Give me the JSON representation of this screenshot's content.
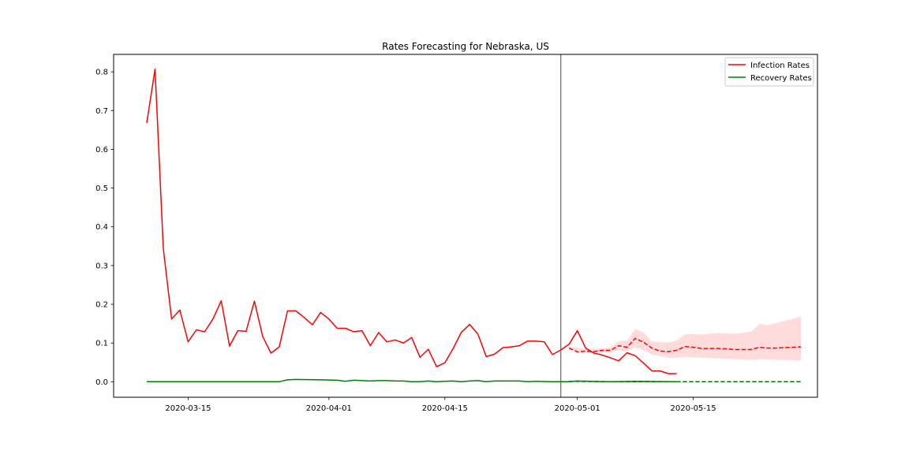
{
  "chart_data": {
    "type": "line",
    "title": "Rates Forecasting for Nebraska, US",
    "xlabel": "",
    "ylabel": "",
    "x_ticks": [
      "2020-03-15",
      "2020-04-01",
      "2020-04-15",
      "2020-05-01",
      "2020-05-15"
    ],
    "y_ticks": [
      "0.0",
      "0.1",
      "0.2",
      "0.3",
      "0.4",
      "0.5",
      "0.6",
      "0.7",
      "0.8"
    ],
    "xlim": [
      "2020-03-06",
      "2020-05-30"
    ],
    "ylim": [
      -0.04,
      0.845
    ],
    "grid": false,
    "legend_position": "top-right",
    "forecast_start": "2020-04-29",
    "colors": {
      "infection": "#ff0000",
      "recovery": "#008000",
      "band": "#ffdcdc",
      "vline": "#7f7f7f"
    },
    "series": [
      {
        "name": "Infection Rates",
        "style": "solid",
        "color": "#ff0000",
        "points": [
          [
            "2020-03-10",
            0.668
          ],
          [
            "2020-03-11",
            0.807
          ],
          [
            "2020-03-12",
            0.343
          ],
          [
            "2020-03-13",
            0.162
          ],
          [
            "2020-03-14",
            0.185
          ],
          [
            "2020-03-15",
            0.103
          ],
          [
            "2020-03-16",
            0.134
          ],
          [
            "2020-03-17",
            0.129
          ],
          [
            "2020-03-18",
            0.162
          ],
          [
            "2020-03-19",
            0.209
          ],
          [
            "2020-03-20",
            0.092
          ],
          [
            "2020-03-21",
            0.132
          ],
          [
            "2020-03-22",
            0.13
          ],
          [
            "2020-03-23",
            0.208
          ],
          [
            "2020-03-24",
            0.117
          ],
          [
            "2020-03-25",
            0.074
          ],
          [
            "2020-03-26",
            0.09
          ],
          [
            "2020-03-27",
            0.183
          ],
          [
            "2020-03-28",
            0.183
          ],
          [
            "2020-03-29",
            0.166
          ],
          [
            "2020-03-30",
            0.147
          ],
          [
            "2020-03-31",
            0.179
          ],
          [
            "2020-04-01",
            0.162
          ],
          [
            "2020-04-02",
            0.138
          ],
          [
            "2020-04-03",
            0.138
          ],
          [
            "2020-04-04",
            0.129
          ],
          [
            "2020-04-05",
            0.132
          ],
          [
            "2020-04-06",
            0.093
          ],
          [
            "2020-04-07",
            0.127
          ],
          [
            "2020-04-08",
            0.103
          ],
          [
            "2020-04-09",
            0.108
          ],
          [
            "2020-04-10",
            0.1
          ],
          [
            "2020-04-11",
            0.114
          ],
          [
            "2020-04-12",
            0.063
          ],
          [
            "2020-04-13",
            0.084
          ],
          [
            "2020-04-14",
            0.039
          ],
          [
            "2020-04-15",
            0.049
          ],
          [
            "2020-04-16",
            0.086
          ],
          [
            "2020-04-17",
            0.128
          ],
          [
            "2020-04-18",
            0.148
          ],
          [
            "2020-04-19",
            0.123
          ],
          [
            "2020-04-20",
            0.065
          ],
          [
            "2020-04-21",
            0.071
          ],
          [
            "2020-04-22",
            0.088
          ],
          [
            "2020-04-23",
            0.09
          ],
          [
            "2020-04-24",
            0.093
          ],
          [
            "2020-04-25",
            0.105
          ],
          [
            "2020-04-26",
            0.105
          ],
          [
            "2020-04-27",
            0.103
          ],
          [
            "2020-04-28",
            0.07
          ],
          [
            "2020-04-29",
            0.082
          ],
          [
            "2020-04-30",
            0.097
          ],
          [
            "2020-05-01",
            0.132
          ],
          [
            "2020-05-02",
            0.087
          ],
          [
            "2020-05-03",
            0.074
          ],
          [
            "2020-05-04",
            0.069
          ],
          [
            "2020-05-05",
            0.062
          ],
          [
            "2020-05-06",
            0.054
          ],
          [
            "2020-05-07",
            0.075
          ],
          [
            "2020-05-08",
            0.067
          ],
          [
            "2020-05-09",
            0.048
          ],
          [
            "2020-05-10",
            0.028
          ],
          [
            "2020-05-11",
            0.028
          ],
          [
            "2020-05-12",
            0.021
          ],
          [
            "2020-05-13",
            0.021
          ]
        ]
      },
      {
        "name": "Recovery Rates",
        "style": "solid",
        "color": "#008000",
        "points": [
          [
            "2020-03-10",
            0.0
          ],
          [
            "2020-03-15",
            0.0
          ],
          [
            "2020-03-20",
            0.0
          ],
          [
            "2020-03-26",
            0.0
          ],
          [
            "2020-03-27",
            0.005
          ],
          [
            "2020-03-28",
            0.006
          ],
          [
            "2020-03-31",
            0.005
          ],
          [
            "2020-04-02",
            0.004
          ],
          [
            "2020-04-03",
            0.001
          ],
          [
            "2020-04-04",
            0.004
          ],
          [
            "2020-04-06",
            0.002
          ],
          [
            "2020-04-07",
            0.003
          ],
          [
            "2020-04-08",
            0.003
          ],
          [
            "2020-04-09",
            0.002
          ],
          [
            "2020-04-10",
            0.002
          ],
          [
            "2020-04-11",
            0.0
          ],
          [
            "2020-04-12",
            0.0
          ],
          [
            "2020-04-13",
            0.002
          ],
          [
            "2020-04-14",
            0.0
          ],
          [
            "2020-04-15",
            0.001
          ],
          [
            "2020-04-16",
            0.002
          ],
          [
            "2020-04-17",
            0.0
          ],
          [
            "2020-04-18",
            0.002
          ],
          [
            "2020-04-19",
            0.003
          ],
          [
            "2020-04-20",
            0.0
          ],
          [
            "2020-04-21",
            0.002
          ],
          [
            "2020-04-24",
            0.002
          ],
          [
            "2020-04-25",
            0.0
          ],
          [
            "2020-04-26",
            0.001
          ],
          [
            "2020-04-28",
            0.0
          ],
          [
            "2020-04-30",
            0.0
          ],
          [
            "2020-05-01",
            0.002
          ],
          [
            "2020-05-05",
            0.0
          ],
          [
            "2020-05-08",
            0.001
          ],
          [
            "2020-05-13",
            0.0
          ]
        ]
      },
      {
        "style": "dashed",
        "color": "#ff0000",
        "points": [
          [
            "2020-04-30",
            0.087
          ],
          [
            "2020-05-01",
            0.077
          ],
          [
            "2020-05-02",
            0.079
          ],
          [
            "2020-05-03",
            0.078
          ],
          [
            "2020-05-04",
            0.081
          ],
          [
            "2020-05-05",
            0.081
          ],
          [
            "2020-05-06",
            0.093
          ],
          [
            "2020-05-07",
            0.089
          ],
          [
            "2020-05-08",
            0.112
          ],
          [
            "2020-05-09",
            0.102
          ],
          [
            "2020-05-10",
            0.087
          ],
          [
            "2020-05-11",
            0.079
          ],
          [
            "2020-05-12",
            0.078
          ],
          [
            "2020-05-13",
            0.081
          ],
          [
            "2020-05-14",
            0.091
          ],
          [
            "2020-05-15",
            0.089
          ],
          [
            "2020-05-16",
            0.086
          ],
          [
            "2020-05-17",
            0.086
          ],
          [
            "2020-05-18",
            0.086
          ],
          [
            "2020-05-19",
            0.085
          ],
          [
            "2020-05-20",
            0.083
          ],
          [
            "2020-05-21",
            0.083
          ],
          [
            "2020-05-22",
            0.083
          ],
          [
            "2020-05-23",
            0.089
          ],
          [
            "2020-05-24",
            0.087
          ],
          [
            "2020-05-25",
            0.087
          ],
          [
            "2020-05-26",
            0.088
          ],
          [
            "2020-05-27",
            0.089
          ],
          [
            "2020-05-28",
            0.09
          ]
        ]
      },
      {
        "style": "dashed",
        "color": "#008000",
        "points": [
          [
            "2020-04-30",
            0.001
          ],
          [
            "2020-05-05",
            0.0
          ],
          [
            "2020-05-10",
            0.0
          ],
          [
            "2020-05-15",
            0.0
          ],
          [
            "2020-05-20",
            0.0
          ],
          [
            "2020-05-25",
            0.0
          ],
          [
            "2020-05-28",
            0.0
          ]
        ]
      }
    ],
    "band": {
      "color": "#ffdcdc",
      "upper": [
        [
          "2020-04-30",
          0.091
        ],
        [
          "2020-05-02",
          0.084
        ],
        [
          "2020-05-04",
          0.086
        ],
        [
          "2020-05-05",
          0.089
        ],
        [
          "2020-05-06",
          0.105
        ],
        [
          "2020-05-07",
          0.106
        ],
        [
          "2020-05-08",
          0.136
        ],
        [
          "2020-05-09",
          0.127
        ],
        [
          "2020-05-10",
          0.104
        ],
        [
          "2020-05-12",
          0.101
        ],
        [
          "2020-05-13",
          0.106
        ],
        [
          "2020-05-14",
          0.123
        ],
        [
          "2020-05-16",
          0.122
        ],
        [
          "2020-05-18",
          0.126
        ],
        [
          "2020-05-20",
          0.124
        ],
        [
          "2020-05-22",
          0.129
        ],
        [
          "2020-05-23",
          0.149
        ],
        [
          "2020-05-24",
          0.146
        ],
        [
          "2020-05-26",
          0.157
        ],
        [
          "2020-05-28",
          0.168
        ]
      ],
      "lower": [
        [
          "2020-04-30",
          0.083
        ],
        [
          "2020-05-02",
          0.074
        ],
        [
          "2020-05-04",
          0.076
        ],
        [
          "2020-05-05",
          0.075
        ],
        [
          "2020-05-06",
          0.082
        ],
        [
          "2020-05-07",
          0.079
        ],
        [
          "2020-05-08",
          0.089
        ],
        [
          "2020-05-09",
          0.081
        ],
        [
          "2020-05-10",
          0.07
        ],
        [
          "2020-05-12",
          0.062
        ],
        [
          "2020-05-13",
          0.062
        ],
        [
          "2020-05-14",
          0.064
        ],
        [
          "2020-05-16",
          0.062
        ],
        [
          "2020-05-18",
          0.06
        ],
        [
          "2020-05-20",
          0.058
        ],
        [
          "2020-05-22",
          0.056
        ],
        [
          "2020-05-23",
          0.058
        ],
        [
          "2020-05-24",
          0.057
        ],
        [
          "2020-05-26",
          0.056
        ],
        [
          "2020-05-28",
          0.055
        ]
      ]
    }
  }
}
